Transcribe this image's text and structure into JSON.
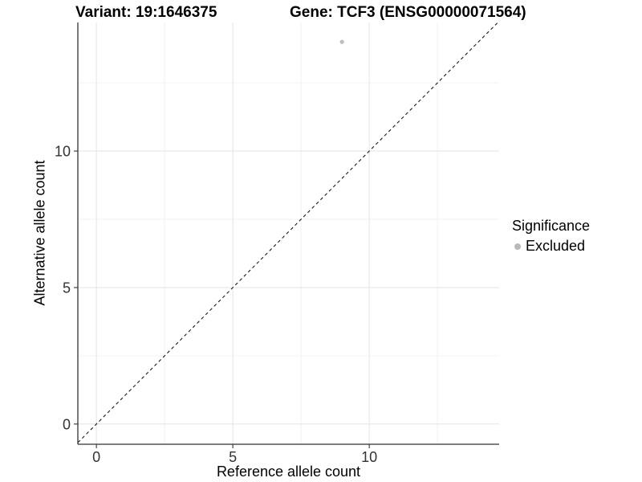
{
  "title": {
    "variant": "Variant: 19:1646375",
    "gene": "Gene: TCF3 (ENSG00000071564)"
  },
  "axes": {
    "x": {
      "label": "Reference allele count",
      "ticks": [
        "0",
        "5",
        "10"
      ]
    },
    "y": {
      "label": "Alternative allele count",
      "ticks": [
        "0",
        "5",
        "10"
      ]
    }
  },
  "legend": {
    "title": "Significance",
    "items": [
      {
        "label": "Excluded",
        "marker": "dot-icon",
        "color": "#b9b9b9"
      }
    ]
  },
  "chart_data": {
    "type": "scatter",
    "title": "Variant: 19:1646375 / Gene: TCF3 (ENSG00000071564)",
    "xlabel": "Reference allele count",
    "ylabel": "Alternative allele count",
    "xlim": [
      -0.68,
      14.76
    ],
    "ylim": [
      -0.74,
      14.71
    ],
    "x_major_ticks": [
      0,
      5,
      10
    ],
    "y_major_ticks": [
      0,
      5,
      10
    ],
    "x_minor_gridlines": [
      2.5,
      7.5,
      12.5
    ],
    "y_minor_gridlines": [
      2.5,
      7.5,
      12.5
    ],
    "grid": true,
    "legend_position": "right",
    "series": [
      {
        "name": "Excluded",
        "color": "#bdbdbd",
        "points": [
          {
            "x": 9,
            "y": 14
          }
        ]
      }
    ],
    "reference_line": {
      "type": "identity",
      "equation": "y = x",
      "style": "dashed",
      "color": "#1a1a1a"
    },
    "colors": {
      "background": "#ffffff",
      "grid_major": "#e6e6e6",
      "grid_minor": "#f1f1f1",
      "axis_line": "#333333",
      "tick_text": "#333333"
    }
  }
}
